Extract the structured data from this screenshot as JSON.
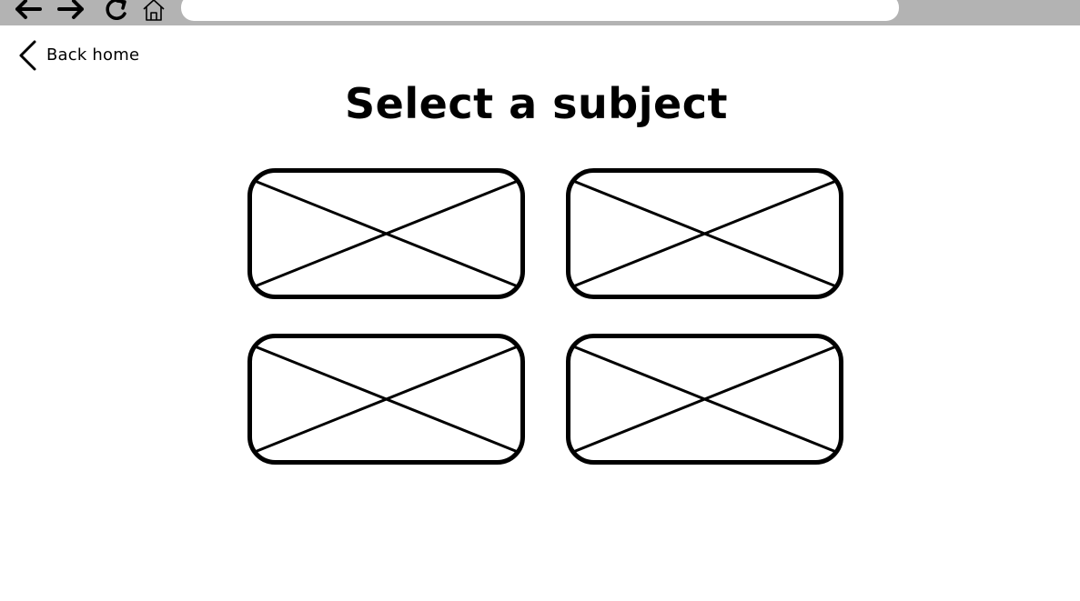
{
  "browser": {
    "address_value": "",
    "nav_icons": [
      "back-arrow-icon",
      "forward-arrow-icon",
      "reload-icon",
      "home-icon"
    ]
  },
  "back_link": {
    "label": "Back home",
    "icon": "chevron-left-icon"
  },
  "title": "Select a subject",
  "subjects": [
    {
      "label": "",
      "image": "image-placeholder-icon"
    },
    {
      "label": "",
      "image": "image-placeholder-icon"
    },
    {
      "label": "",
      "image": "image-placeholder-icon"
    },
    {
      "label": "",
      "image": "image-placeholder-icon"
    }
  ],
  "colors": {
    "browser_bar": "#b3b3b3",
    "background": "#ffffff",
    "stroke": "#000000"
  }
}
